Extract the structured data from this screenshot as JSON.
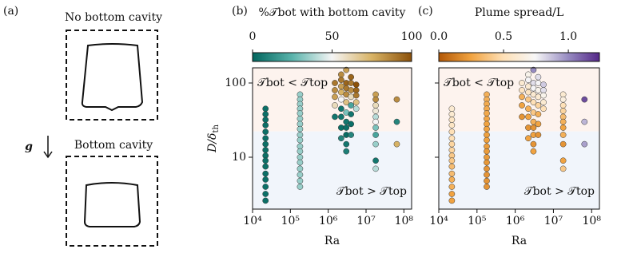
{
  "panel_a": {
    "label": "(a)",
    "top_title": "No bottom cavity",
    "gravity": "g",
    "bottom_title": "Bottom cavity"
  },
  "chart_data": [
    {
      "type": "scatter",
      "panel_label": "(b)",
      "colorbar_label": "%𝒯bot with bottom cavity",
      "clim": [
        0,
        100
      ],
      "cticks": [
        0,
        50,
        100
      ],
      "colormap": [
        "#01665e",
        "#5ab4ac",
        "#f5f5f5",
        "#d8b365",
        "#8c510a"
      ],
      "xscale": "log",
      "yscale": "log",
      "xlim": [
        10000,
        160000000
      ],
      "ylim": [
        2,
        160
      ],
      "xticks": [
        {
          "value": 10000,
          "label": "10⁴"
        },
        {
          "value": 100000,
          "label": "10⁵"
        },
        {
          "value": 1000000,
          "label": "10⁶"
        },
        {
          "value": 10000000,
          "label": "10⁷"
        },
        {
          "value": 100000000,
          "label": "10⁸"
        }
      ],
      "yticks": [
        10,
        100
      ],
      "show_ytick_labels": true,
      "xlabel": "Ra",
      "ylabel": {
        "main": "D/δ",
        "sub": "th"
      },
      "annotations": [
        "𝒯bot < 𝒯top",
        "𝒯bot > 𝒯top"
      ],
      "x": [
        22000,
        22000,
        22000,
        22000,
        22000,
        22000,
        22000,
        22000,
        22000,
        22000,
        22000,
        22000,
        22000,
        22000,
        22000,
        22000,
        180000,
        180000,
        180000,
        180000,
        180000,
        180000,
        180000,
        180000,
        180000,
        180000,
        180000,
        180000,
        180000,
        180000,
        180000,
        180000,
        180000,
        180000,
        1500000,
        1500000,
        1500000,
        1500000,
        1500000,
        2200000,
        2200000,
        2200000,
        2200000,
        2200000,
        2200000,
        2200000,
        2200000,
        2200000,
        3000000,
        3000000,
        3000000,
        3000000,
        3000000,
        3000000,
        3000000,
        3000000,
        3000000,
        3000000,
        3000000,
        4000000,
        4000000,
        4000000,
        4000000,
        4000000,
        4000000,
        4000000,
        4000000,
        5500000,
        5500000,
        5500000,
        5500000,
        5500000,
        18000000,
        18000000,
        18000000,
        18000000,
        18000000,
        18000000,
        18000000,
        18000000,
        18000000,
        18000000,
        18000000,
        65000000,
        65000000,
        65000000
      ],
      "y": [
        45,
        38,
        32,
        27,
        22,
        18,
        15,
        12.5,
        10.5,
        9,
        7.5,
        6,
        5,
        4,
        3.2,
        2.6,
        70,
        60,
        52,
        45,
        39,
        33,
        28,
        24,
        20,
        17,
        14,
        12,
        10,
        8.5,
        7,
        5.8,
        4.8,
        4,
        100,
        80,
        65,
        50,
        35,
        130,
        110,
        90,
        75,
        60,
        45,
        35,
        25,
        18,
        150,
        100,
        85,
        70,
        55,
        40,
        30,
        25,
        20,
        15,
        12,
        120,
        100,
        80,
        65,
        50,
        38,
        28,
        20,
        95,
        80,
        68,
        55,
        45,
        70,
        60,
        50,
        42,
        35,
        30,
        25,
        20,
        15,
        9,
        7,
        60,
        30,
        15
      ],
      "values": [
        3,
        3,
        3,
        3,
        3,
        3,
        3,
        3,
        3,
        3,
        3,
        3,
        3,
        3,
        3,
        3,
        35,
        35,
        35,
        35,
        35,
        35,
        35,
        35,
        35,
        35,
        35,
        35,
        35,
        35,
        35,
        35,
        35,
        35,
        90,
        85,
        80,
        60,
        5,
        85,
        90,
        80,
        75,
        50,
        5,
        5,
        3,
        10,
        80,
        95,
        90,
        85,
        70,
        30,
        5,
        3,
        2,
        5,
        8,
        95,
        90,
        85,
        60,
        20,
        5,
        3,
        10,
        100,
        95,
        90,
        70,
        40,
        80,
        85,
        60,
        55,
        40,
        50,
        30,
        20,
        35,
        5,
        40,
        85,
        10,
        75
      ]
    },
    {
      "type": "scatter",
      "panel_label": "(c)",
      "colorbar_label": "Plume spread/L",
      "clim": [
        0,
        1.24
      ],
      "cticks": [
        {
          "value": 0,
          "label": "0.0"
        },
        0.5,
        {
          "value": 1,
          "label": "1.0"
        }
      ],
      "colormap": [
        "#b35806",
        "#f1a340",
        "#fee0b6",
        "#f7f7f7",
        "#998ec3",
        "#542788"
      ],
      "xscale": "log",
      "yscale": "log",
      "xlim": [
        10000,
        160000000
      ],
      "ylim": [
        2,
        160
      ],
      "xticks": [
        {
          "value": 10000,
          "label": "10⁴"
        },
        {
          "value": 100000,
          "label": "10⁵"
        },
        {
          "value": 1000000,
          "label": "10⁶"
        },
        {
          "value": 10000000,
          "label": "10⁷"
        },
        {
          "value": 100000000,
          "label": "10⁸"
        }
      ],
      "yticks": [
        10,
        100
      ],
      "show_ytick_labels": false,
      "xlabel": "Ra",
      "annotations": [
        "𝒯bot < 𝒯top",
        "𝒯bot > 𝒯top"
      ],
      "x": [
        22000,
        22000,
        22000,
        22000,
        22000,
        22000,
        22000,
        22000,
        22000,
        22000,
        22000,
        22000,
        22000,
        22000,
        22000,
        22000,
        180000,
        180000,
        180000,
        180000,
        180000,
        180000,
        180000,
        180000,
        180000,
        180000,
        180000,
        180000,
        180000,
        180000,
        180000,
        180000,
        180000,
        180000,
        1500000,
        1500000,
        1500000,
        1500000,
        1500000,
        2200000,
        2200000,
        2200000,
        2200000,
        2200000,
        2200000,
        2200000,
        2200000,
        2200000,
        3000000,
        3000000,
        3000000,
        3000000,
        3000000,
        3000000,
        3000000,
        3000000,
        3000000,
        3000000,
        3000000,
        4000000,
        4000000,
        4000000,
        4000000,
        4000000,
        4000000,
        4000000,
        4000000,
        5500000,
        5500000,
        5500000,
        5500000,
        5500000,
        18000000,
        18000000,
        18000000,
        18000000,
        18000000,
        18000000,
        18000000,
        18000000,
        18000000,
        18000000,
        18000000,
        65000000,
        65000000,
        65000000
      ],
      "y": [
        45,
        38,
        32,
        27,
        22,
        18,
        15,
        12.5,
        10.5,
        9,
        7.5,
        6,
        5,
        4,
        3.2,
        2.6,
        70,
        60,
        52,
        45,
        39,
        33,
        28,
        24,
        20,
        17,
        14,
        12,
        10,
        8.5,
        7,
        5.8,
        4.8,
        4,
        100,
        80,
        65,
        50,
        35,
        130,
        110,
        90,
        75,
        60,
        45,
        35,
        25,
        18,
        150,
        100,
        85,
        70,
        55,
        40,
        30,
        25,
        20,
        15,
        12,
        120,
        100,
        80,
        65,
        50,
        38,
        28,
        20,
        95,
        80,
        68,
        55,
        45,
        70,
        60,
        50,
        42,
        35,
        30,
        25,
        20,
        15,
        9,
        7,
        60,
        30,
        15
      ],
      "values": [
        0.6,
        0.6,
        0.55,
        0.55,
        0.5,
        0.5,
        0.45,
        0.45,
        0.4,
        0.4,
        0.35,
        0.35,
        0.3,
        0.3,
        0.25,
        0.25,
        0.3,
        0.3,
        0.28,
        0.28,
        0.27,
        0.26,
        0.25,
        0.25,
        0.24,
        0.24,
        0.23,
        0.22,
        0.22,
        0.21,
        0.2,
        0.2,
        0.2,
        0.2,
        0.6,
        0.55,
        0.3,
        0.25,
        0.2,
        0.7,
        0.75,
        0.6,
        0.55,
        0.4,
        0.3,
        0.25,
        0.2,
        0.25,
        1.0,
        0.8,
        0.75,
        0.6,
        0.5,
        0.4,
        0.3,
        0.2,
        0.25,
        0.2,
        0.25,
        0.8,
        0.75,
        0.7,
        0.6,
        0.45,
        0.3,
        0.25,
        0.2,
        0.85,
        0.8,
        0.7,
        0.6,
        0.5,
        0.6,
        0.65,
        0.5,
        0.45,
        0.35,
        0.3,
        0.25,
        0.3,
        0.2,
        0.25,
        0.4,
        1.15,
        0.9,
        0.95
      ]
    }
  ]
}
